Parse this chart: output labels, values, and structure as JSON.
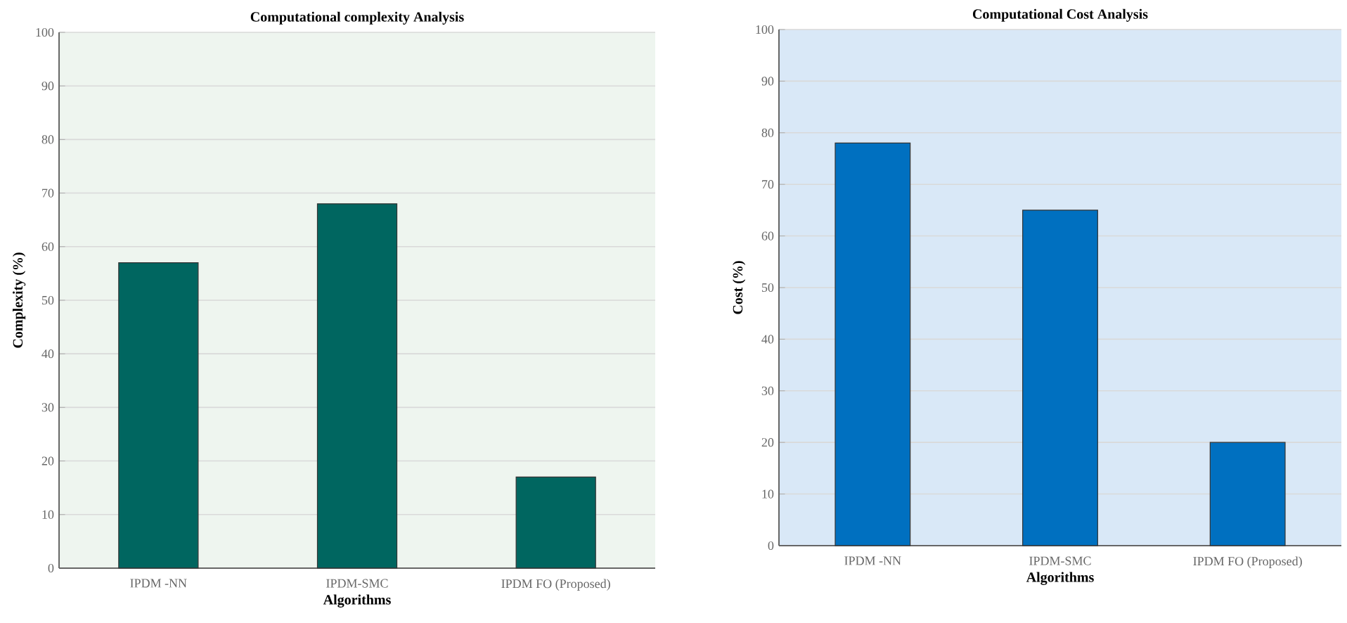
{
  "chart_data": [
    {
      "type": "bar",
      "title": "Computational complexity Analysis",
      "xlabel": "Algorithms",
      "ylabel": "Complexity (%)",
      "categories": [
        "IPDM -NN",
        "IPDM-SMC",
        "IPDM FO (Proposed)"
      ],
      "values": [
        57,
        68,
        17
      ],
      "color": "#006660",
      "ylim": [
        0,
        100
      ],
      "yticks": [
        0,
        10,
        20,
        30,
        40,
        50,
        60,
        70,
        80,
        90,
        100
      ],
      "grid": "y"
    },
    {
      "type": "bar",
      "title": "Computational Cost Analysis",
      "xlabel": "Algorithms",
      "ylabel": "Cost (%)",
      "categories": [
        "IPDM -NN",
        "IPDM-SMC",
        "IPDM FO (Proposed)"
      ],
      "values": [
        78,
        65,
        20
      ],
      "color": "#0070c0",
      "ylim": [
        0,
        100
      ],
      "yticks": [
        0,
        10,
        20,
        30,
        40,
        50,
        60,
        70,
        80,
        90,
        100
      ],
      "grid": "y"
    }
  ]
}
